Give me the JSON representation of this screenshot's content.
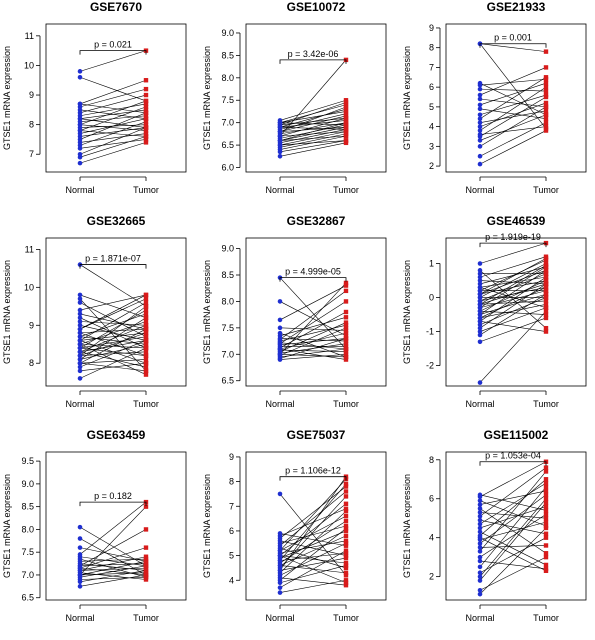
{
  "colors": {
    "normal": "#1f2fd0",
    "tumor": "#d81b1b",
    "line": "#000000"
  },
  "chart_data": [
    {
      "type": "scatter",
      "title": "GSE7670",
      "ylabel": "GTSE1 mRNA expression",
      "categories": [
        "Normal",
        "Tumor"
      ],
      "yticks": [
        7,
        8,
        9,
        10,
        11
      ],
      "ylim": [
        6.4,
        11.4
      ],
      "pvalue": "p = 0.021",
      "pairs": [
        [
          6.7,
          7.4
        ],
        [
          6.9,
          7.6
        ],
        [
          7.0,
          7.9
        ],
        [
          7.2,
          7.5
        ],
        [
          7.3,
          8.1
        ],
        [
          7.4,
          7.7
        ],
        [
          7.5,
          8.4
        ],
        [
          7.6,
          7.9
        ],
        [
          7.7,
          8.2
        ],
        [
          7.8,
          7.6
        ],
        [
          7.8,
          8.6
        ],
        [
          7.9,
          8.0
        ],
        [
          8.0,
          8.8
        ],
        [
          8.0,
          7.8
        ],
        [
          8.1,
          8.3
        ],
        [
          8.2,
          8.5
        ],
        [
          8.2,
          7.9
        ],
        [
          8.3,
          8.7
        ],
        [
          8.4,
          9.0
        ],
        [
          8.5,
          8.2
        ],
        [
          8.6,
          9.2
        ],
        [
          8.7,
          8.4
        ],
        [
          8.7,
          9.5
        ],
        [
          9.6,
          8.8
        ],
        [
          9.8,
          10.5
        ]
      ]
    },
    {
      "type": "scatter",
      "title": "GSE10072",
      "ylabel": "GTSE1 mRNA expression",
      "categories": [
        "Normal",
        "Tumor"
      ],
      "yticks": [
        6.0,
        6.5,
        7.0,
        7.5,
        8.0,
        8.5,
        9.0
      ],
      "ylim": [
        5.9,
        9.2
      ],
      "pvalue": "p = 3.42e-06",
      "pairs": [
        [
          6.25,
          6.55
        ],
        [
          6.35,
          6.6
        ],
        [
          6.4,
          6.7
        ],
        [
          6.45,
          6.75
        ],
        [
          6.5,
          6.8
        ],
        [
          6.55,
          6.85
        ],
        [
          6.6,
          6.9
        ],
        [
          6.6,
          7.0
        ],
        [
          6.65,
          6.95
        ],
        [
          6.7,
          7.1
        ],
        [
          6.7,
          6.8
        ],
        [
          6.75,
          7.0
        ],
        [
          6.8,
          7.15
        ],
        [
          6.8,
          6.9
        ],
        [
          6.85,
          7.2
        ],
        [
          6.9,
          7.05
        ],
        [
          6.9,
          7.3
        ],
        [
          6.95,
          7.1
        ],
        [
          7.0,
          7.4
        ],
        [
          7.0,
          6.95
        ],
        [
          7.0,
          7.25
        ],
        [
          7.05,
          7.5
        ],
        [
          6.5,
          6.6
        ],
        [
          6.6,
          6.7
        ],
        [
          6.7,
          8.4
        ],
        [
          6.8,
          7.35
        ],
        [
          6.9,
          6.85
        ],
        [
          6.95,
          7.45
        ]
      ]
    },
    {
      "type": "scatter",
      "title": "GSE21933",
      "ylabel": "GTSE1 mRNA expression",
      "categories": [
        "Normal",
        "Tumor"
      ],
      "yticks": [
        2,
        3,
        4,
        5,
        6,
        7,
        8,
        9
      ],
      "ylim": [
        1.7,
        9.2
      ],
      "pvalue": "p = 0.001",
      "pairs": [
        [
          2.1,
          3.8
        ],
        [
          2.5,
          4.2
        ],
        [
          3.0,
          5.0
        ],
        [
          3.3,
          4.6
        ],
        [
          3.5,
          5.5
        ],
        [
          3.6,
          4.0
        ],
        [
          3.8,
          6.0
        ],
        [
          4.0,
          5.2
        ],
        [
          4.2,
          4.8
        ],
        [
          4.4,
          6.5
        ],
        [
          4.6,
          5.6
        ],
        [
          4.9,
          4.4
        ],
        [
          5.1,
          6.2
        ],
        [
          5.4,
          5.0
        ],
        [
          5.6,
          7.0
        ],
        [
          5.9,
          5.8
        ],
        [
          6.1,
          6.4
        ],
        [
          6.2,
          4.6
        ],
        [
          8.2,
          7.8
        ],
        [
          8.2,
          3.9
        ]
      ]
    },
    {
      "type": "scatter",
      "title": "GSE32665",
      "ylabel": "GTSE1 mRNA expression",
      "categories": [
        "Normal",
        "Tumor"
      ],
      "yticks": [
        8,
        9,
        10,
        11
      ],
      "ylim": [
        7.4,
        11.3
      ],
      "pvalue": "p = 1.871e-07",
      "pairs": [
        [
          7.6,
          8.4
        ],
        [
          7.8,
          8.0
        ],
        [
          7.9,
          8.6
        ],
        [
          8.0,
          8.9
        ],
        [
          8.0,
          7.8
        ],
        [
          8.1,
          8.5
        ],
        [
          8.1,
          9.2
        ],
        [
          8.2,
          8.3
        ],
        [
          8.2,
          8.8
        ],
        [
          8.3,
          7.9
        ],
        [
          8.3,
          9.0
        ],
        [
          8.3,
          8.6
        ],
        [
          8.4,
          8.2
        ],
        [
          8.4,
          9.4
        ],
        [
          8.4,
          8.7
        ],
        [
          8.5,
          9.1
        ],
        [
          8.5,
          8.4
        ],
        [
          8.6,
          8.0
        ],
        [
          8.6,
          9.6
        ],
        [
          8.6,
          8.8
        ],
        [
          8.7,
          8.5
        ],
        [
          8.7,
          9.3
        ],
        [
          8.8,
          8.9
        ],
        [
          8.8,
          8.2
        ],
        [
          8.9,
          9.7
        ],
        [
          9.0,
          8.6
        ],
        [
          9.1,
          9.0
        ],
        [
          9.2,
          8.4
        ],
        [
          9.4,
          9.8
        ],
        [
          9.6,
          8.7
        ],
        [
          9.7,
          7.8
        ],
        [
          9.8,
          9.2
        ],
        [
          10.6,
          9.5
        ],
        [
          8.0,
          8.1
        ],
        [
          8.2,
          9.5
        ],
        [
          8.5,
          7.7
        ],
        [
          8.9,
          9.8
        ],
        [
          9.3,
          8.9
        ]
      ]
    },
    {
      "type": "scatter",
      "title": "GSE32867",
      "ylabel": "GTSE1 mRNA expression",
      "categories": [
        "Normal",
        "Tumor"
      ],
      "yticks": [
        6.5,
        7.0,
        7.5,
        8.0,
        8.5,
        9.0
      ],
      "ylim": [
        6.4,
        9.2
      ],
      "pvalue": "p = 4.999e-05",
      "pairs": [
        [
          6.9,
          7.0
        ],
        [
          6.92,
          7.3
        ],
        [
          6.95,
          7.1
        ],
        [
          6.98,
          7.5
        ],
        [
          7.0,
          6.95
        ],
        [
          7.02,
          7.2
        ],
        [
          7.05,
          7.6
        ],
        [
          7.08,
          7.05
        ],
        [
          7.1,
          7.4
        ],
        [
          7.12,
          7.8
        ],
        [
          7.15,
          7.15
        ],
        [
          7.18,
          7.3
        ],
        [
          7.2,
          8.0
        ],
        [
          7.22,
          7.1
        ],
        [
          7.25,
          7.55
        ],
        [
          7.28,
          8.2
        ],
        [
          7.3,
          7.25
        ],
        [
          7.35,
          7.7
        ],
        [
          7.4,
          6.95
        ],
        [
          7.5,
          7.45
        ],
        [
          7.65,
          8.3
        ],
        [
          8.0,
          7.35
        ],
        [
          8.45,
          7.1
        ],
        [
          7.0,
          8.35
        ],
        [
          7.1,
          6.9
        ]
      ]
    },
    {
      "type": "scatter",
      "title": "GSE46539",
      "ylabel": "GTSE1 mRNA expression",
      "categories": [
        "Normal",
        "Tumor"
      ],
      "yticks": [
        -2,
        -1,
        0,
        1
      ],
      "ylim": [
        -2.6,
        1.75
      ],
      "pvalue": "p = 1.919e-19",
      "pairs": [
        [
          -1.3,
          -0.6
        ],
        [
          -1.1,
          0.1
        ],
        [
          -1.0,
          -0.3
        ],
        [
          -0.9,
          0.4
        ],
        [
          -0.8,
          0.0
        ],
        [
          -0.7,
          0.6
        ],
        [
          -0.6,
          -0.2
        ],
        [
          -0.6,
          0.3
        ],
        [
          -0.5,
          0.8
        ],
        [
          -0.5,
          0.1
        ],
        [
          -0.4,
          0.5
        ],
        [
          -0.4,
          -0.5
        ],
        [
          -0.3,
          0.2
        ],
        [
          -0.3,
          0.9
        ],
        [
          -0.2,
          0.4
        ],
        [
          -0.2,
          -0.1
        ],
        [
          -0.1,
          0.7
        ],
        [
          -0.1,
          0.3
        ],
        [
          0.0,
          1.0
        ],
        [
          0.0,
          0.0
        ],
        [
          0.1,
          0.5
        ],
        [
          0.1,
          0.8
        ],
        [
          0.2,
          0.2
        ],
        [
          0.2,
          1.1
        ],
        [
          0.3,
          0.6
        ],
        [
          0.3,
          -0.3
        ],
        [
          0.4,
          0.9
        ],
        [
          0.5,
          0.4
        ],
        [
          0.6,
          1.2
        ],
        [
          0.7,
          0.7
        ],
        [
          0.8,
          -0.9
        ],
        [
          1.0,
          1.6
        ],
        [
          -2.5,
          -0.4
        ],
        [
          -0.7,
          -1.0
        ],
        [
          -0.2,
          0.95
        ],
        [
          0.1,
          1.15
        ]
      ]
    },
    {
      "type": "scatter",
      "title": "GSE63459",
      "ylabel": "GTSE1 mRNA expression",
      "categories": [
        "Normal",
        "Tumor"
      ],
      "yticks": [
        6.5,
        7.0,
        7.5,
        8.0,
        8.5,
        9.0,
        9.5
      ],
      "ylim": [
        6.45,
        9.7
      ],
      "pvalue": "p = 0.182",
      "pairs": [
        [
          6.75,
          7.0
        ],
        [
          6.85,
          7.1
        ],
        [
          6.9,
          6.95
        ],
        [
          6.95,
          7.2
        ],
        [
          7.0,
          7.05
        ],
        [
          7.0,
          7.3
        ],
        [
          7.05,
          6.9
        ],
        [
          7.1,
          7.15
        ],
        [
          7.1,
          7.4
        ],
        [
          7.15,
          7.0
        ],
        [
          7.2,
          7.25
        ],
        [
          7.2,
          8.0
        ],
        [
          7.25,
          7.1
        ],
        [
          7.3,
          7.35
        ],
        [
          7.35,
          6.95
        ],
        [
          7.4,
          7.2
        ],
        [
          7.45,
          8.6
        ],
        [
          7.6,
          7.3
        ],
        [
          7.8,
          7.0
        ],
        [
          8.05,
          7.2
        ],
        [
          7.0,
          8.5
        ],
        [
          7.15,
          7.6
        ]
      ]
    },
    {
      "type": "scatter",
      "title": "GSE75037",
      "ylabel": "GTSE1 mRNA expression",
      "categories": [
        "Normal",
        "Tumor"
      ],
      "yticks": [
        4,
        5,
        6,
        7,
        8,
        9
      ],
      "ylim": [
        3.2,
        9.2
      ],
      "pvalue": "p = 1.106e-12",
      "pairs": [
        [
          3.5,
          4.0
        ],
        [
          3.7,
          5.2
        ],
        [
          3.9,
          4.6
        ],
        [
          4.0,
          6.1
        ],
        [
          4.1,
          3.8
        ],
        [
          4.2,
          5.5
        ],
        [
          4.3,
          6.8
        ],
        [
          4.4,
          4.9
        ],
        [
          4.5,
          7.4
        ],
        [
          4.6,
          5.8
        ],
        [
          4.6,
          4.3
        ],
        [
          4.7,
          6.4
        ],
        [
          4.8,
          7.9
        ],
        [
          4.8,
          5.1
        ],
        [
          4.9,
          6.0
        ],
        [
          5.0,
          4.7
        ],
        [
          5.0,
          7.1
        ],
        [
          5.1,
          5.6
        ],
        [
          5.2,
          8.1
        ],
        [
          5.2,
          6.6
        ],
        [
          5.3,
          4.5
        ],
        [
          5.4,
          7.6
        ],
        [
          5.5,
          6.2
        ],
        [
          5.6,
          5.0
        ],
        [
          5.7,
          7.8
        ],
        [
          5.8,
          6.9
        ],
        [
          5.9,
          5.4
        ],
        [
          7.5,
          4.2
        ],
        [
          4.4,
          8.2
        ],
        [
          5.0,
          3.9
        ]
      ]
    },
    {
      "type": "scatter",
      "title": "GSE115002",
      "ylabel": "GTSE1 mRNA expression",
      "categories": [
        "Normal",
        "Tumor"
      ],
      "yticks": [
        2,
        4,
        6,
        8
      ],
      "ylim": [
        0.8,
        8.4
      ],
      "pvalue": "p = 1.053e-04",
      "pairs": [
        [
          1.1,
          4.5
        ],
        [
          1.3,
          3.0
        ],
        [
          1.8,
          5.8
        ],
        [
          2.2,
          4.0
        ],
        [
          2.5,
          6.6
        ],
        [
          2.8,
          2.4
        ],
        [
          3.0,
          5.2
        ],
        [
          3.3,
          7.4
        ],
        [
          3.5,
          3.6
        ],
        [
          3.7,
          6.2
        ],
        [
          3.9,
          4.8
        ],
        [
          4.1,
          7.0
        ],
        [
          4.3,
          2.6
        ],
        [
          4.5,
          5.6
        ],
        [
          4.7,
          6.8
        ],
        [
          4.9,
          4.2
        ],
        [
          5.1,
          7.6
        ],
        [
          5.3,
          5.0
        ],
        [
          5.5,
          3.2
        ],
        [
          5.7,
          6.4
        ],
        [
          5.9,
          4.6
        ],
        [
          6.1,
          7.9
        ],
        [
          6.2,
          5.4
        ],
        [
          2.0,
          6.0
        ],
        [
          4.0,
          2.3
        ]
      ]
    }
  ]
}
